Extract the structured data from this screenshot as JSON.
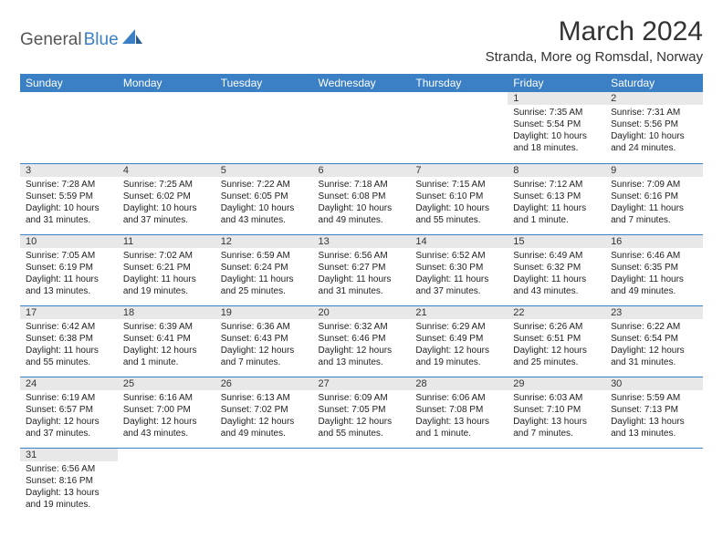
{
  "logo": {
    "part1": "General",
    "part2": "Blue"
  },
  "title": "March 2024",
  "location": "Stranda, More og Romsdal, Norway",
  "colors": {
    "header_bg": "#3b7fc4",
    "daynum_bg": "#e8e8e8",
    "border": "#3b7fc4",
    "text": "#222"
  },
  "weekdays": [
    "Sunday",
    "Monday",
    "Tuesday",
    "Wednesday",
    "Thursday",
    "Friday",
    "Saturday"
  ],
  "grid": [
    [
      null,
      null,
      null,
      null,
      null,
      {
        "n": "1",
        "sr": "Sunrise: 7:35 AM",
        "ss": "Sunset: 5:54 PM",
        "dl1": "Daylight: 10 hours",
        "dl2": "and 18 minutes."
      },
      {
        "n": "2",
        "sr": "Sunrise: 7:31 AM",
        "ss": "Sunset: 5:56 PM",
        "dl1": "Daylight: 10 hours",
        "dl2": "and 24 minutes."
      }
    ],
    [
      {
        "n": "3",
        "sr": "Sunrise: 7:28 AM",
        "ss": "Sunset: 5:59 PM",
        "dl1": "Daylight: 10 hours",
        "dl2": "and 31 minutes."
      },
      {
        "n": "4",
        "sr": "Sunrise: 7:25 AM",
        "ss": "Sunset: 6:02 PM",
        "dl1": "Daylight: 10 hours",
        "dl2": "and 37 minutes."
      },
      {
        "n": "5",
        "sr": "Sunrise: 7:22 AM",
        "ss": "Sunset: 6:05 PM",
        "dl1": "Daylight: 10 hours",
        "dl2": "and 43 minutes."
      },
      {
        "n": "6",
        "sr": "Sunrise: 7:18 AM",
        "ss": "Sunset: 6:08 PM",
        "dl1": "Daylight: 10 hours",
        "dl2": "and 49 minutes."
      },
      {
        "n": "7",
        "sr": "Sunrise: 7:15 AM",
        "ss": "Sunset: 6:10 PM",
        "dl1": "Daylight: 10 hours",
        "dl2": "and 55 minutes."
      },
      {
        "n": "8",
        "sr": "Sunrise: 7:12 AM",
        "ss": "Sunset: 6:13 PM",
        "dl1": "Daylight: 11 hours",
        "dl2": "and 1 minute."
      },
      {
        "n": "9",
        "sr": "Sunrise: 7:09 AM",
        "ss": "Sunset: 6:16 PM",
        "dl1": "Daylight: 11 hours",
        "dl2": "and 7 minutes."
      }
    ],
    [
      {
        "n": "10",
        "sr": "Sunrise: 7:05 AM",
        "ss": "Sunset: 6:19 PM",
        "dl1": "Daylight: 11 hours",
        "dl2": "and 13 minutes."
      },
      {
        "n": "11",
        "sr": "Sunrise: 7:02 AM",
        "ss": "Sunset: 6:21 PM",
        "dl1": "Daylight: 11 hours",
        "dl2": "and 19 minutes."
      },
      {
        "n": "12",
        "sr": "Sunrise: 6:59 AM",
        "ss": "Sunset: 6:24 PM",
        "dl1": "Daylight: 11 hours",
        "dl2": "and 25 minutes."
      },
      {
        "n": "13",
        "sr": "Sunrise: 6:56 AM",
        "ss": "Sunset: 6:27 PM",
        "dl1": "Daylight: 11 hours",
        "dl2": "and 31 minutes."
      },
      {
        "n": "14",
        "sr": "Sunrise: 6:52 AM",
        "ss": "Sunset: 6:30 PM",
        "dl1": "Daylight: 11 hours",
        "dl2": "and 37 minutes."
      },
      {
        "n": "15",
        "sr": "Sunrise: 6:49 AM",
        "ss": "Sunset: 6:32 PM",
        "dl1": "Daylight: 11 hours",
        "dl2": "and 43 minutes."
      },
      {
        "n": "16",
        "sr": "Sunrise: 6:46 AM",
        "ss": "Sunset: 6:35 PM",
        "dl1": "Daylight: 11 hours",
        "dl2": "and 49 minutes."
      }
    ],
    [
      {
        "n": "17",
        "sr": "Sunrise: 6:42 AM",
        "ss": "Sunset: 6:38 PM",
        "dl1": "Daylight: 11 hours",
        "dl2": "and 55 minutes."
      },
      {
        "n": "18",
        "sr": "Sunrise: 6:39 AM",
        "ss": "Sunset: 6:41 PM",
        "dl1": "Daylight: 12 hours",
        "dl2": "and 1 minute."
      },
      {
        "n": "19",
        "sr": "Sunrise: 6:36 AM",
        "ss": "Sunset: 6:43 PM",
        "dl1": "Daylight: 12 hours",
        "dl2": "and 7 minutes."
      },
      {
        "n": "20",
        "sr": "Sunrise: 6:32 AM",
        "ss": "Sunset: 6:46 PM",
        "dl1": "Daylight: 12 hours",
        "dl2": "and 13 minutes."
      },
      {
        "n": "21",
        "sr": "Sunrise: 6:29 AM",
        "ss": "Sunset: 6:49 PM",
        "dl1": "Daylight: 12 hours",
        "dl2": "and 19 minutes."
      },
      {
        "n": "22",
        "sr": "Sunrise: 6:26 AM",
        "ss": "Sunset: 6:51 PM",
        "dl1": "Daylight: 12 hours",
        "dl2": "and 25 minutes."
      },
      {
        "n": "23",
        "sr": "Sunrise: 6:22 AM",
        "ss": "Sunset: 6:54 PM",
        "dl1": "Daylight: 12 hours",
        "dl2": "and 31 minutes."
      }
    ],
    [
      {
        "n": "24",
        "sr": "Sunrise: 6:19 AM",
        "ss": "Sunset: 6:57 PM",
        "dl1": "Daylight: 12 hours",
        "dl2": "and 37 minutes."
      },
      {
        "n": "25",
        "sr": "Sunrise: 6:16 AM",
        "ss": "Sunset: 7:00 PM",
        "dl1": "Daylight: 12 hours",
        "dl2": "and 43 minutes."
      },
      {
        "n": "26",
        "sr": "Sunrise: 6:13 AM",
        "ss": "Sunset: 7:02 PM",
        "dl1": "Daylight: 12 hours",
        "dl2": "and 49 minutes."
      },
      {
        "n": "27",
        "sr": "Sunrise: 6:09 AM",
        "ss": "Sunset: 7:05 PM",
        "dl1": "Daylight: 12 hours",
        "dl2": "and 55 minutes."
      },
      {
        "n": "28",
        "sr": "Sunrise: 6:06 AM",
        "ss": "Sunset: 7:08 PM",
        "dl1": "Daylight: 13 hours",
        "dl2": "and 1 minute."
      },
      {
        "n": "29",
        "sr": "Sunrise: 6:03 AM",
        "ss": "Sunset: 7:10 PM",
        "dl1": "Daylight: 13 hours",
        "dl2": "and 7 minutes."
      },
      {
        "n": "30",
        "sr": "Sunrise: 5:59 AM",
        "ss": "Sunset: 7:13 PM",
        "dl1": "Daylight: 13 hours",
        "dl2": "and 13 minutes."
      }
    ],
    [
      {
        "n": "31",
        "sr": "Sunrise: 6:56 AM",
        "ss": "Sunset: 8:16 PM",
        "dl1": "Daylight: 13 hours",
        "dl2": "and 19 minutes."
      },
      null,
      null,
      null,
      null,
      null,
      null
    ]
  ]
}
